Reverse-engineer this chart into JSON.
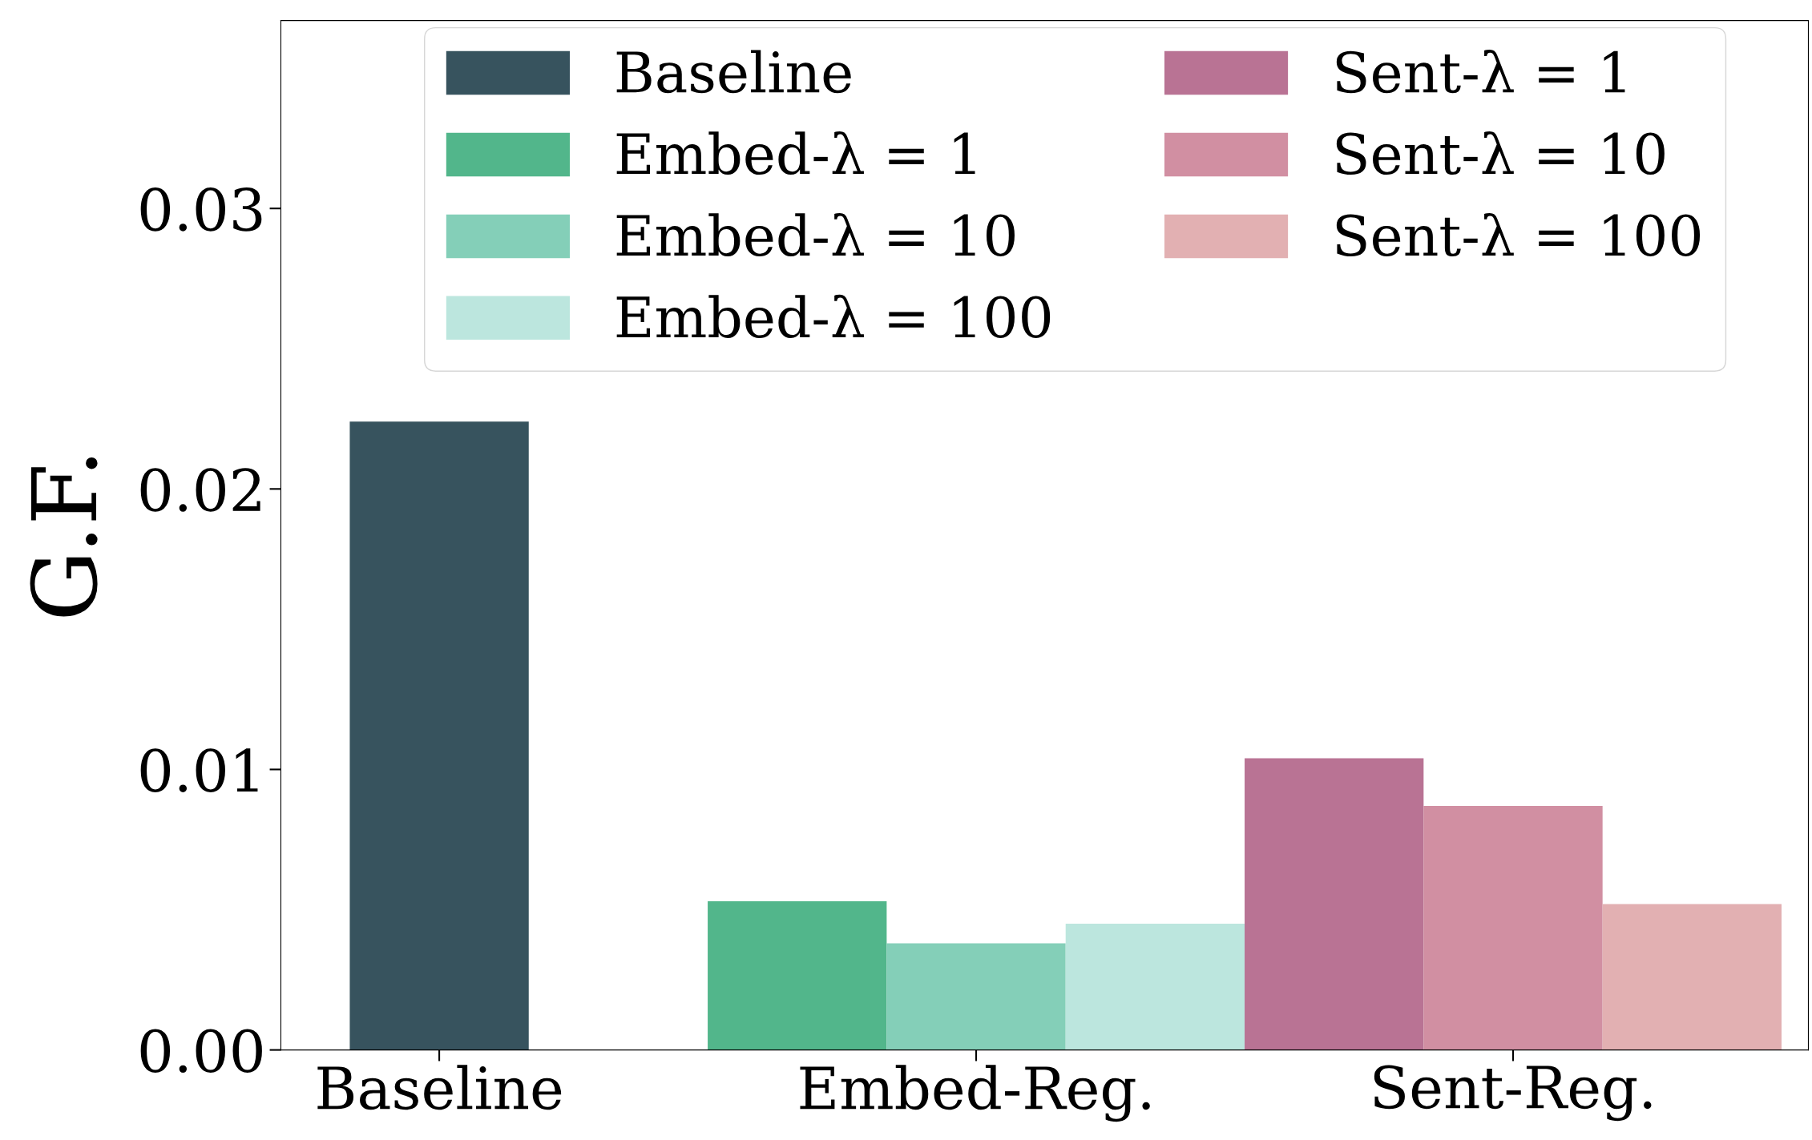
{
  "chart_data": {
    "type": "bar",
    "ylabel": "G.F.",
    "categories": [
      "Baseline",
      "Embed-Reg.",
      "Sent-Reg."
    ],
    "series": [
      {
        "name": "Baseline",
        "color": "#37535e",
        "values": [
          0.0224,
          null,
          null
        ]
      },
      {
        "name": "Embed-λ = 1",
        "color": "#52b68b",
        "values": [
          null,
          0.0053,
          null
        ]
      },
      {
        "name": "Embed-λ = 10",
        "color": "#84cfb8",
        "values": [
          null,
          0.0038,
          null
        ]
      },
      {
        "name": "Embed-λ = 100",
        "color": "#bce6de",
        "values": [
          null,
          0.0045,
          null
        ]
      },
      {
        "name": "Sent-λ = 1",
        "color": "#b97394",
        "values": [
          null,
          null,
          0.0104
        ]
      },
      {
        "name": "Sent-λ = 10",
        "color": "#d18fa2",
        "values": [
          null,
          null,
          0.0087
        ]
      },
      {
        "name": "Sent-λ = 100",
        "color": "#e2b0b2",
        "values": [
          null,
          null,
          0.0052
        ]
      }
    ],
    "ylim": [
      0,
      0.0367
    ],
    "yticks": [
      {
        "value": 0,
        "label": "0.00"
      },
      {
        "value": 0.01,
        "label": "0.01"
      },
      {
        "value": 0.02,
        "label": "0.02"
      },
      {
        "value": 0.03,
        "label": "0.03"
      }
    ],
    "legend": "top",
    "grid": false
  }
}
